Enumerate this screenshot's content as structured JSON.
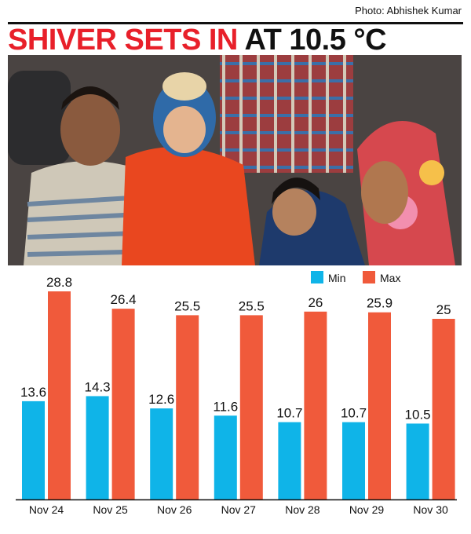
{
  "credit": "Photo: Abhishek Kumar",
  "headline": {
    "part1": "SHIVER SETS IN",
    "part2": " AT 10.5 °C"
  },
  "chart_data": {
    "type": "bar",
    "categories": [
      "Nov 24",
      "Nov 25",
      "Nov 26",
      "Nov 27",
      "Nov 28",
      "Nov 29",
      "Nov 30"
    ],
    "series": [
      {
        "name": "Min",
        "color": "#0fb4e8",
        "values": [
          13.6,
          14.3,
          12.6,
          11.6,
          10.7,
          10.7,
          10.5
        ]
      },
      {
        "name": "Max",
        "color": "#f05a3b",
        "values": [
          28.8,
          26.4,
          25.5,
          25.5,
          26,
          25.9,
          25
        ]
      }
    ],
    "value_labels": {
      "Min": [
        "13.6",
        "14.3",
        "12.6",
        "11.6",
        "10.7",
        "10.7",
        "10.5"
      ],
      "Max": [
        "28.8",
        "26.4",
        "25.5",
        "25.5",
        "26",
        "25.9",
        "25"
      ]
    },
    "ylim": [
      0,
      30
    ],
    "legend_position": "top-right",
    "grid": false,
    "title": "",
    "xlabel": "",
    "ylabel": ""
  }
}
